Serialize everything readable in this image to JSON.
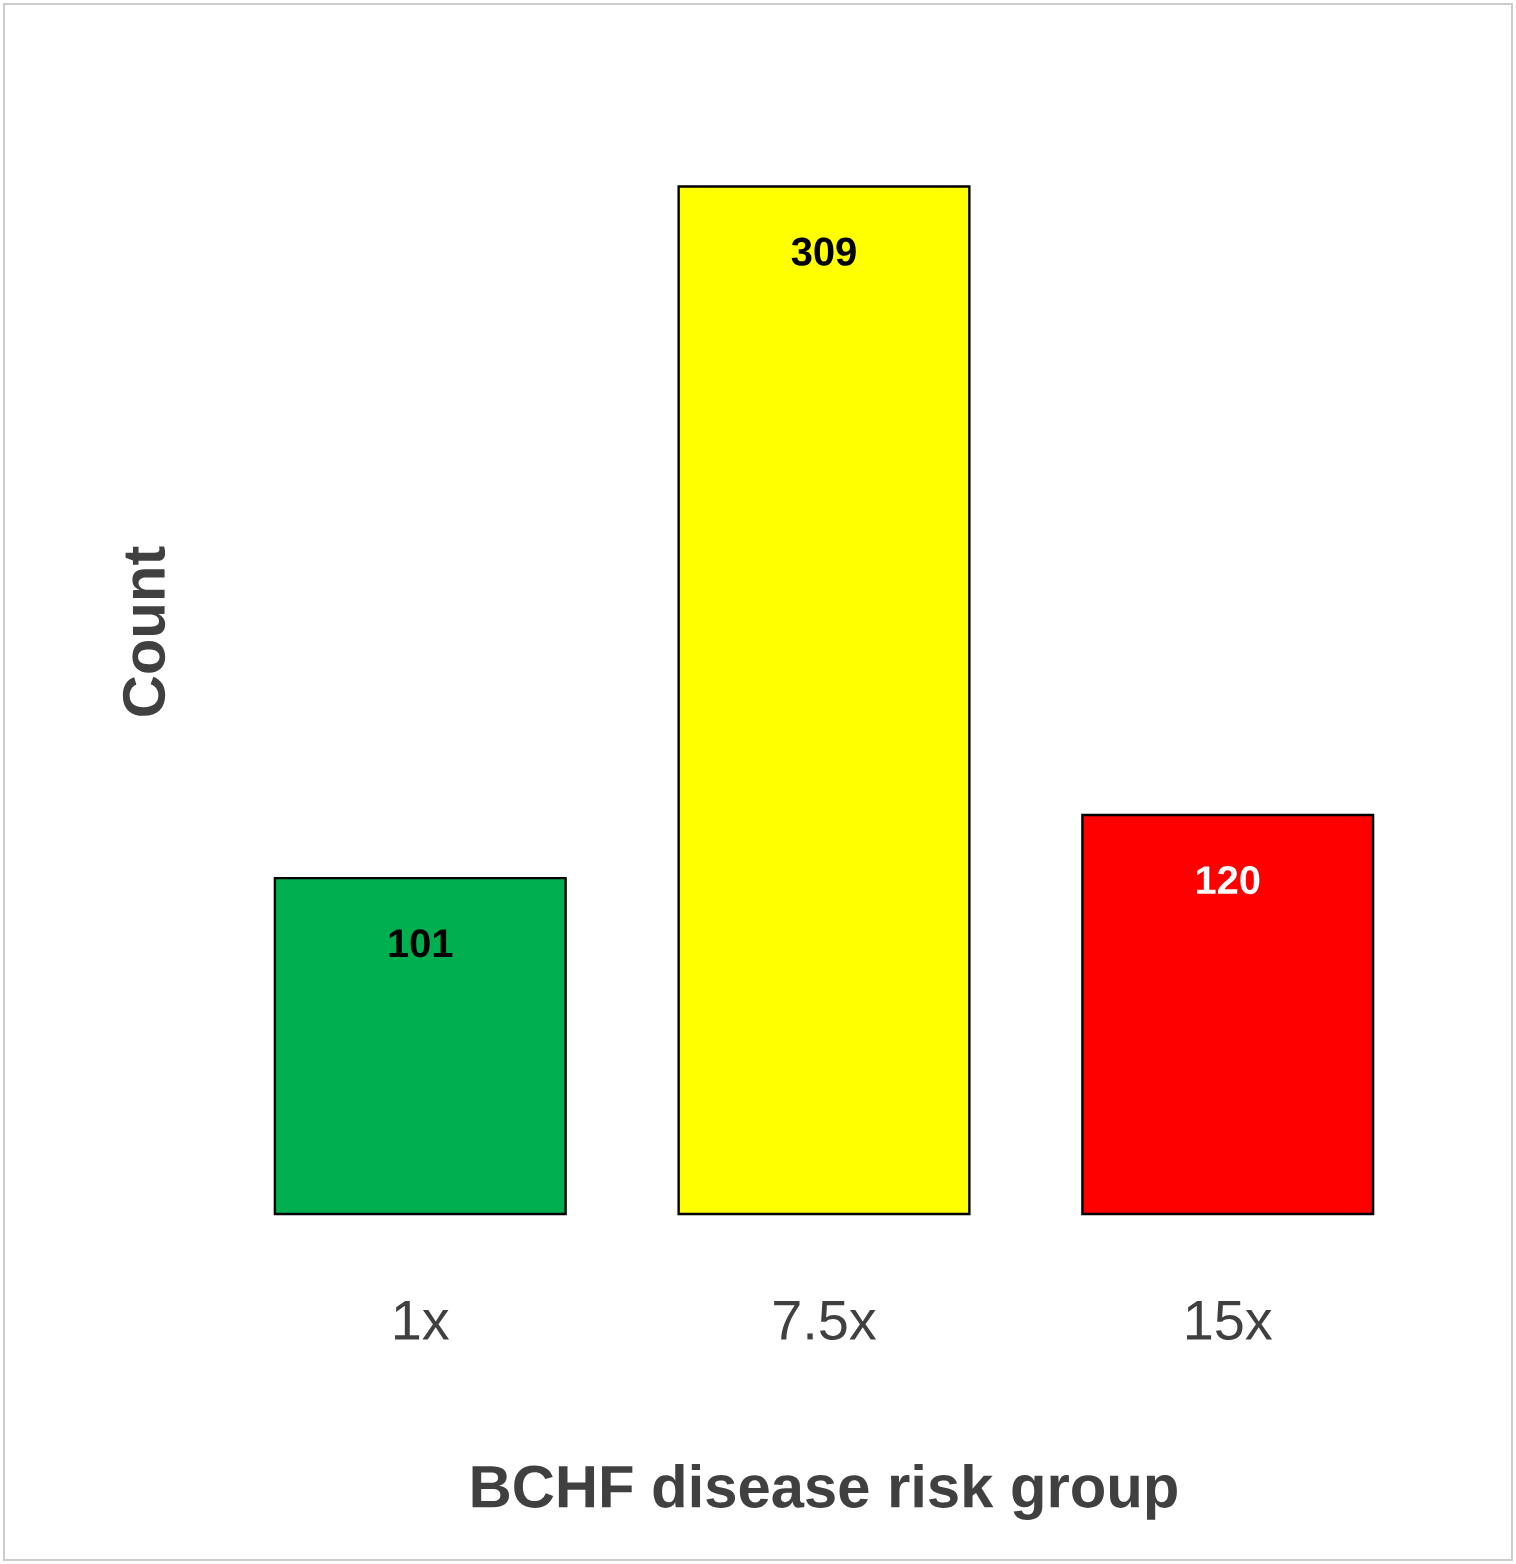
{
  "chart_data": {
    "type": "bar",
    "xlabel": "BCHF disease risk group",
    "ylabel": "Count",
    "categories": [
      "1x",
      "7.5x",
      "15x"
    ],
    "values": [
      101,
      309,
      120
    ],
    "colors": [
      "#00b050",
      "#ffff00",
      "#ff0000"
    ],
    "data_labels": true
  }
}
